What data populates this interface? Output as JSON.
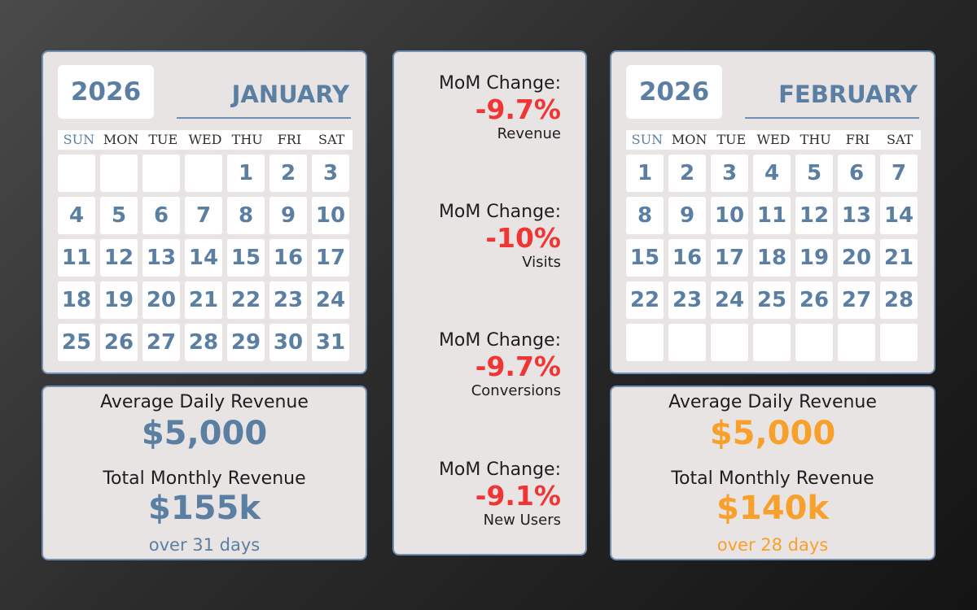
{
  "january": {
    "year": "2026",
    "month": "JANUARY",
    "weekdays": [
      "SUN",
      "MON",
      "TUE",
      "WED",
      "THU",
      "FRI",
      "SAT"
    ],
    "days": [
      "",
      "",
      "",
      "",
      "1",
      "2",
      "3",
      "4",
      "5",
      "6",
      "7",
      "8",
      "9",
      "10",
      "11",
      "12",
      "13",
      "14",
      "15",
      "16",
      "17",
      "18",
      "19",
      "20",
      "21",
      "22",
      "23",
      "24",
      "25",
      "26",
      "27",
      "28",
      "29",
      "30",
      "31"
    ],
    "avg_label": "Average Daily Revenue",
    "avg_value": "$5,000",
    "total_label": "Total Monthly Revenue",
    "total_value": "$155k",
    "days_note": "over 31 days",
    "accent": "#5b7fa3"
  },
  "february": {
    "year": "2026",
    "month": "FEBRUARY",
    "weekdays": [
      "SUN",
      "MON",
      "TUE",
      "WED",
      "THU",
      "FRI",
      "SAT"
    ],
    "days": [
      "1",
      "2",
      "3",
      "4",
      "5",
      "6",
      "7",
      "8",
      "9",
      "10",
      "11",
      "12",
      "13",
      "14",
      "15",
      "16",
      "17",
      "18",
      "19",
      "20",
      "21",
      "22",
      "23",
      "24",
      "25",
      "26",
      "27",
      "28",
      "",
      "",
      "",
      "",
      "",
      "",
      ""
    ],
    "avg_label": "Average Daily Revenue",
    "avg_value": "$5,000",
    "total_label": "Total Monthly Revenue",
    "total_value": "$140k",
    "days_note": "over 28 days",
    "accent": "#f7a02c"
  },
  "mom_changes": [
    {
      "label": "MoM Change:",
      "value": "-9.7%",
      "metric": "Revenue"
    },
    {
      "label": "MoM Change:",
      "value": "-10%",
      "metric": "Visits"
    },
    {
      "label": "MoM Change:",
      "value": "-9.7%",
      "metric": "Conversions"
    },
    {
      "label": "MoM Change:",
      "value": "-9.1%",
      "metric": "New Users"
    }
  ],
  "colors": {
    "panel_bg": "#e9e4e4",
    "panel_border": "#6f8fb5",
    "negative": "#f03535"
  }
}
